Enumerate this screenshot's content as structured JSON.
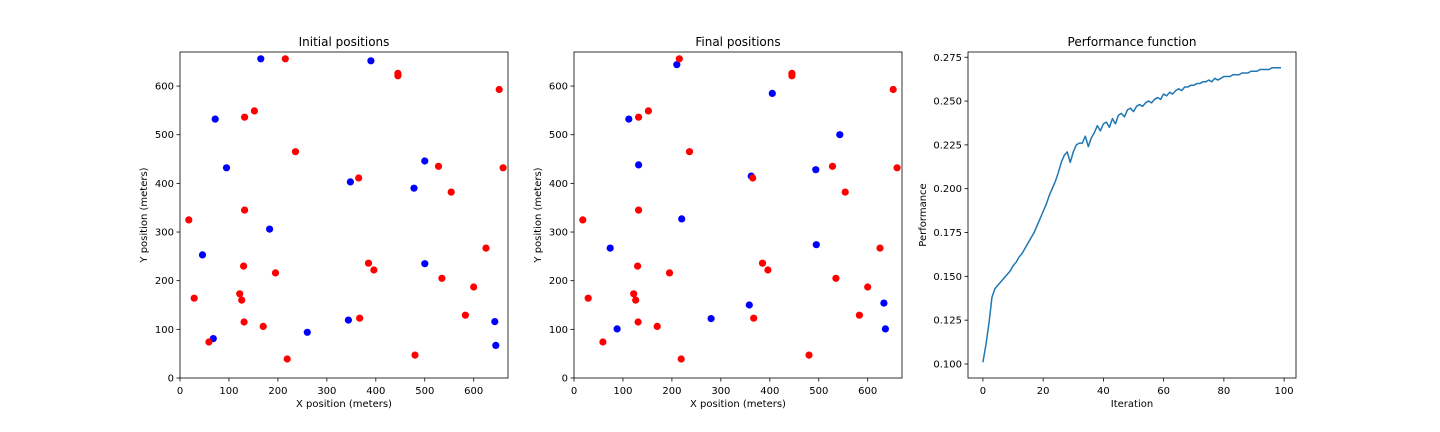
{
  "chart_data": [
    {
      "type": "scatter",
      "title": "Initial positions",
      "xlabel": "X position (meters)",
      "ylabel": "Y position (meters)",
      "xlim": [
        0,
        670
      ],
      "ylim": [
        0,
        670
      ],
      "xticks": [
        0,
        100,
        200,
        300,
        400,
        500,
        600
      ],
      "yticks": [
        0,
        100,
        200,
        300,
        400,
        500,
        600
      ],
      "grid": false,
      "series": [
        {
          "color": "#0000ff",
          "points": [
            [
              165,
              656
            ],
            [
              390,
              652
            ],
            [
              72,
              532
            ],
            [
              95,
              432
            ],
            [
              500,
              446
            ],
            [
              348,
              403
            ],
            [
              478,
              390
            ],
            [
              183,
              306
            ],
            [
              46,
              253
            ],
            [
              500,
              235
            ],
            [
              260,
              94
            ],
            [
              68,
              81
            ],
            [
              344,
              119
            ],
            [
              643,
              116
            ],
            [
              645,
              67
            ]
          ]
        },
        {
          "color": "#ff0000",
          "points": [
            [
              215,
              656
            ],
            [
              445,
              626
            ],
            [
              445,
              621
            ],
            [
              652,
              593
            ],
            [
              152,
              549
            ],
            [
              132,
              536
            ],
            [
              236,
              465
            ],
            [
              528,
              435
            ],
            [
              660,
              432
            ],
            [
              365,
              411
            ],
            [
              554,
              382
            ],
            [
              132,
              345
            ],
            [
              18,
              325
            ],
            [
              625,
              267
            ],
            [
              130,
              230
            ],
            [
              385,
              236
            ],
            [
              396,
              222
            ],
            [
              195,
              216
            ],
            [
              535,
              205
            ],
            [
              600,
              187
            ],
            [
              29,
              164
            ],
            [
              122,
              173
            ],
            [
              126,
              160
            ],
            [
              583,
              129
            ],
            [
              367,
              123
            ],
            [
              131,
              115
            ],
            [
              170,
              106
            ],
            [
              59,
              74
            ],
            [
              480,
              47
            ],
            [
              219,
              39
            ]
          ]
        }
      ]
    },
    {
      "type": "scatter",
      "title": "Final positions",
      "xlabel": "X position (meters)",
      "ylabel": "Y position (meters)",
      "xlim": [
        0,
        670
      ],
      "ylim": [
        0,
        670
      ],
      "xticks": [
        0,
        100,
        200,
        300,
        400,
        500,
        600
      ],
      "yticks": [
        0,
        100,
        200,
        300,
        400,
        500,
        600
      ],
      "grid": false,
      "series": [
        {
          "color": "#0000ff",
          "points": [
            [
              210,
              644
            ],
            [
              405,
              585
            ],
            [
              112,
              532
            ],
            [
              543,
              500
            ],
            [
              132,
              438
            ],
            [
              494,
              428
            ],
            [
              362,
              415
            ],
            [
              220,
              327
            ],
            [
              74,
              267
            ],
            [
              495,
              274
            ],
            [
              88,
              101
            ],
            [
              280,
              122
            ],
            [
              358,
              150
            ],
            [
              633,
              154
            ],
            [
              636,
              101
            ]
          ]
        },
        {
          "color": "#ff0000",
          "points": [
            [
              215,
              656
            ],
            [
              445,
              626
            ],
            [
              445,
              621
            ],
            [
              652,
              593
            ],
            [
              152,
              549
            ],
            [
              132,
              536
            ],
            [
              236,
              465
            ],
            [
              528,
              435
            ],
            [
              660,
              432
            ],
            [
              365,
              411
            ],
            [
              554,
              382
            ],
            [
              132,
              345
            ],
            [
              18,
              325
            ],
            [
              625,
              267
            ],
            [
              130,
              230
            ],
            [
              385,
              236
            ],
            [
              396,
              222
            ],
            [
              195,
              216
            ],
            [
              535,
              205
            ],
            [
              600,
              187
            ],
            [
              29,
              164
            ],
            [
              122,
              173
            ],
            [
              126,
              160
            ],
            [
              583,
              129
            ],
            [
              367,
              123
            ],
            [
              131,
              115
            ],
            [
              170,
              106
            ],
            [
              59,
              74
            ],
            [
              480,
              47
            ],
            [
              219,
              39
            ]
          ]
        }
      ]
    },
    {
      "type": "line",
      "title": "Performance function",
      "xlabel": "Iteration",
      "ylabel": "Performance",
      "xlim": [
        -4.95,
        103.95
      ],
      "ylim": [
        0.092,
        0.278
      ],
      "xticks": [
        0,
        20,
        40,
        60,
        80,
        100
      ],
      "yticks": [
        0.1,
        0.125,
        0.15,
        0.175,
        0.2,
        0.225,
        0.25,
        0.275
      ],
      "grid": false,
      "series": [
        {
          "color": "#1f77b4",
          "x": [
            0,
            1,
            2,
            3,
            4,
            5,
            6,
            7,
            8,
            9,
            10,
            11,
            12,
            13,
            14,
            15,
            16,
            17,
            18,
            19,
            20,
            21,
            22,
            23,
            24,
            25,
            26,
            27,
            28,
            29,
            30,
            31,
            32,
            33,
            34,
            35,
            36,
            37,
            38,
            39,
            40,
            41,
            42,
            43,
            44,
            45,
            46,
            47,
            48,
            49,
            50,
            51,
            52,
            53,
            54,
            55,
            56,
            57,
            58,
            59,
            60,
            61,
            62,
            63,
            64,
            65,
            66,
            67,
            68,
            69,
            70,
            71,
            72,
            73,
            74,
            75,
            76,
            77,
            78,
            79,
            80,
            81,
            82,
            83,
            84,
            85,
            86,
            87,
            88,
            89,
            90,
            91,
            92,
            93,
            94,
            95,
            96,
            97,
            98,
            99
          ],
          "y": [
            0.101,
            0.111,
            0.123,
            0.138,
            0.143,
            0.145,
            0.147,
            0.149,
            0.151,
            0.153,
            0.156,
            0.158,
            0.161,
            0.163,
            0.166,
            0.169,
            0.172,
            0.175,
            0.179,
            0.183,
            0.187,
            0.191,
            0.196,
            0.2,
            0.204,
            0.209,
            0.215,
            0.219,
            0.221,
            0.215,
            0.221,
            0.225,
            0.226,
            0.226,
            0.23,
            0.224,
            0.229,
            0.232,
            0.236,
            0.233,
            0.237,
            0.238,
            0.235,
            0.24,
            0.237,
            0.242,
            0.243,
            0.241,
            0.245,
            0.246,
            0.244,
            0.247,
            0.248,
            0.247,
            0.249,
            0.25,
            0.249,
            0.251,
            0.252,
            0.251,
            0.254,
            0.253,
            0.255,
            0.254,
            0.256,
            0.257,
            0.256,
            0.258,
            0.258,
            0.259,
            0.259,
            0.26,
            0.26,
            0.261,
            0.261,
            0.262,
            0.261,
            0.263,
            0.262,
            0.263,
            0.264,
            0.264,
            0.264,
            0.265,
            0.265,
            0.265,
            0.266,
            0.266,
            0.266,
            0.267,
            0.267,
            0.267,
            0.268,
            0.268,
            0.268,
            0.268,
            0.269,
            0.269,
            0.269,
            0.269
          ]
        }
      ]
    }
  ]
}
